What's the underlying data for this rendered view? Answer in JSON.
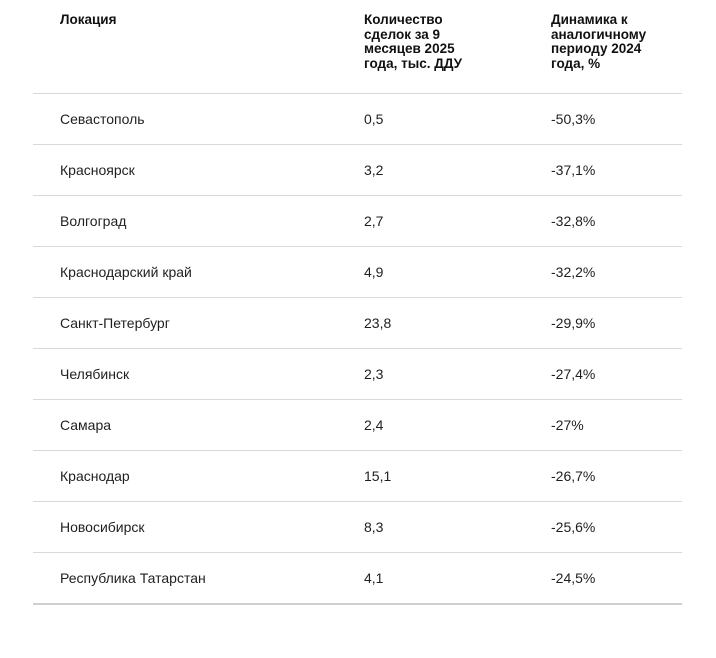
{
  "table": {
    "headers": {
      "location": "Локация",
      "count": "Количество сделок за 9 месяцев 2025 года, тыс. ДДУ",
      "dynamics": "Динамика к аналогичному периоду 2024 года, %"
    },
    "rows": [
      {
        "location": "Севастополь",
        "count": "0,5",
        "dynamics": "-50,3%"
      },
      {
        "location": "Красноярск",
        "count": "3,2",
        "dynamics": "-37,1%"
      },
      {
        "location": "Волгоград",
        "count": "2,7",
        "dynamics": "-32,8%"
      },
      {
        "location": "Краснодарский край",
        "count": "4,9",
        "dynamics": "-32,2%"
      },
      {
        "location": "Санкт-Петербург",
        "count": "23,8",
        "dynamics": "-29,9%"
      },
      {
        "location": "Челябинск",
        "count": "2,3",
        "dynamics": "-27,4%"
      },
      {
        "location": "Самара",
        "count": "2,4",
        "dynamics": "-27%"
      },
      {
        "location": "Краснодар",
        "count": "15,1",
        "dynamics": "-26,7%"
      },
      {
        "location": "Новосибирск",
        "count": "8,3",
        "dynamics": "-25,6%"
      },
      {
        "location": "Республика Татарстан",
        "count": "4,1",
        "dynamics": "-24,5%"
      }
    ]
  }
}
